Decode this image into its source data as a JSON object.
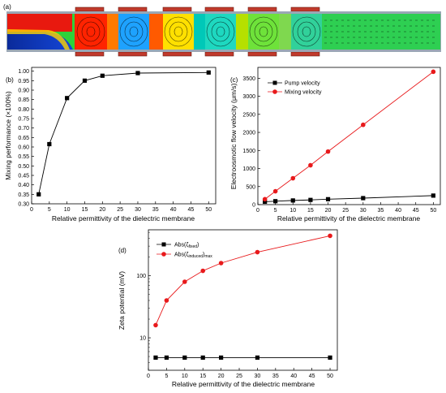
{
  "figure": {
    "panel_a_label": "(a)",
    "panel_b_label": "(b)",
    "panel_c_label": "(c)",
    "panel_d_label": "(d)"
  },
  "chart_data": [
    {
      "panel": "b",
      "type": "line",
      "xlabel": "Relative permittivity of the dielectric membrane",
      "ylabel": "Mixing performance (×100%)",
      "xlim": [
        0,
        52
      ],
      "ylim": [
        0.3,
        1.02
      ],
      "xticks": [
        "0",
        "5",
        "10",
        "15",
        "20",
        "25",
        "30",
        "35",
        "40",
        "45",
        "50"
      ],
      "yticks": [
        "0.30",
        "0.35",
        "0.40",
        "0.45",
        "0.50",
        "0.55",
        "0.60",
        "0.65",
        "0.70",
        "0.75",
        "0.80",
        "0.85",
        "0.90",
        "0.95",
        "1.00"
      ],
      "series": [
        {
          "x": [
            2,
            5,
            10,
            15,
            20,
            30,
            50
          ],
          "values": [
            0.35,
            0.615,
            0.858,
            0.95,
            0.976,
            0.99,
            0.993
          ],
          "color": "#000000",
          "marker": "square"
        }
      ]
    },
    {
      "panel": "c",
      "type": "line",
      "xlabel": "Relative permittivity of the dielectric membrane",
      "ylabel": "Electroosmotic flow velocity (μm/s)",
      "xlim": [
        0,
        52
      ],
      "ylim": [
        0,
        3800
      ],
      "xticks": [
        "0",
        "5",
        "10",
        "15",
        "20",
        "25",
        "30",
        "35",
        "40",
        "45",
        "50"
      ],
      "yticks": [
        "0",
        "500",
        "1000",
        "1500",
        "2000",
        "2500",
        "3000",
        "3500"
      ],
      "legend": "top-left",
      "series": [
        {
          "name": "Pump velocity",
          "x": [
            2,
            5,
            10,
            15,
            20,
            30,
            50
          ],
          "values": [
            80,
            95,
            115,
            130,
            150,
            180,
            250
          ],
          "color": "#000000",
          "marker": "square"
        },
        {
          "name": "Mixing velocity",
          "x": [
            2,
            5,
            10,
            15,
            20,
            30,
            50
          ],
          "values": [
            150,
            370,
            730,
            1090,
            1470,
            2210,
            3680
          ],
          "color": "#e8191b",
          "marker": "circle"
        }
      ]
    },
    {
      "panel": "d",
      "type": "line",
      "xlabel": "Relative permittivity of the dielectric membrane",
      "ylabel": "Zeta potential (mV)",
      "xlim": [
        0,
        52
      ],
      "yscale": "log",
      "ylim": [
        3,
        550
      ],
      "xticks": [
        "0",
        "5",
        "10",
        "15",
        "20",
        "25",
        "30",
        "35",
        "40",
        "45",
        "50"
      ],
      "yticks": [
        "10",
        "100"
      ],
      "legend": "top-left",
      "series": [
        {
          "name": "Abs(ζ_fixed)",
          "x": [
            2,
            5,
            10,
            15,
            20,
            30,
            50
          ],
          "values": [
            4.8,
            4.8,
            4.8,
            4.8,
            4.8,
            4.8,
            4.8
          ],
          "color": "#000000",
          "marker": "square"
        },
        {
          "name": "Abs(ζ_induced)_max",
          "x": [
            2,
            5,
            10,
            15,
            20,
            30,
            50
          ],
          "values": [
            16,
            40,
            80,
            120,
            160,
            240,
            440
          ],
          "color": "#e8191b",
          "marker": "circle"
        }
      ]
    }
  ]
}
